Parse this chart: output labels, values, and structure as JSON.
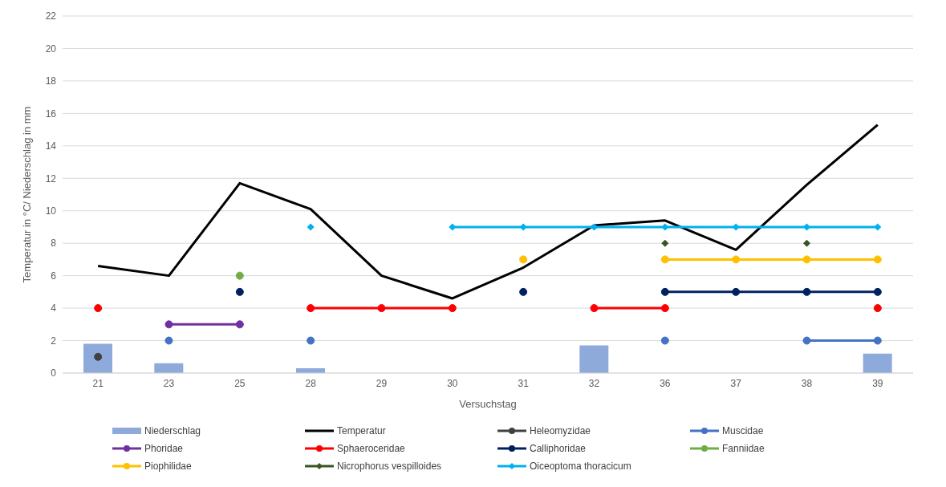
{
  "chart_data": {
    "type": "line",
    "xlabel": "Versuchstag",
    "ylabel": "Temperatur in °C/ Niederschlag in mm",
    "categories": [
      "21",
      "23",
      "25",
      "28",
      "29",
      "30",
      "31",
      "32",
      "36",
      "37",
      "38",
      "39"
    ],
    "ylim": [
      0,
      22
    ],
    "yticks": [
      0,
      2,
      4,
      6,
      8,
      10,
      12,
      14,
      16,
      18,
      20,
      22
    ],
    "grid": "y",
    "legend": "bottom",
    "marker": "circle",
    "series": [
      {
        "name": "Niederschlag",
        "type": "bar",
        "color": "#8eaadb",
        "values": [
          1.8,
          0.6,
          null,
          0.3,
          null,
          null,
          null,
          1.7,
          null,
          null,
          null,
          1.2
        ]
      },
      {
        "name": "Temperatur",
        "color": "#000000",
        "marker": "none",
        "values": [
          6.6,
          6.0,
          11.7,
          10.1,
          6.0,
          4.6,
          6.5,
          9.1,
          9.4,
          7.6,
          11.6,
          15.3
        ]
      },
      {
        "name": "Heleomyzidae",
        "color": "#404040",
        "values": [
          1,
          null,
          null,
          null,
          null,
          null,
          null,
          null,
          null,
          null,
          null,
          null
        ]
      },
      {
        "name": "Muscidae",
        "color": "#4472c4",
        "values": [
          null,
          2,
          null,
          2,
          null,
          null,
          null,
          null,
          2,
          null,
          2,
          2
        ]
      },
      {
        "name": "Phoridae",
        "color": "#7030a0",
        "values": [
          null,
          3,
          3,
          null,
          null,
          null,
          null,
          null,
          null,
          null,
          null,
          null
        ]
      },
      {
        "name": "Sphaeroceridae",
        "color": "#ff0000",
        "values": [
          4,
          null,
          null,
          4,
          4,
          4,
          null,
          4,
          4,
          null,
          null,
          4
        ]
      },
      {
        "name": "Calliphoridae",
        "color": "#002060",
        "values": [
          null,
          null,
          5,
          null,
          null,
          null,
          5,
          null,
          5,
          5,
          5,
          5
        ]
      },
      {
        "name": "Fanniidae",
        "color": "#70ad47",
        "values": [
          null,
          null,
          6,
          null,
          null,
          null,
          null,
          null,
          null,
          null,
          null,
          null
        ]
      },
      {
        "name": "Piophilidae",
        "color": "#ffc000",
        "values": [
          null,
          null,
          null,
          null,
          null,
          null,
          7,
          null,
          7,
          7,
          7,
          7
        ]
      },
      {
        "name": "Nicrophorus vespilloides",
        "type": "scatter",
        "color": "#375623",
        "marker": "diamond",
        "values": [
          null,
          null,
          null,
          null,
          null,
          null,
          null,
          null,
          8,
          null,
          8,
          null
        ]
      },
      {
        "name": "Oiceoptoma thoracicum",
        "color": "#00b0f0",
        "marker": "diamond",
        "values": [
          null,
          null,
          null,
          9,
          null,
          9,
          9,
          9,
          9,
          9,
          9,
          9
        ]
      }
    ]
  }
}
